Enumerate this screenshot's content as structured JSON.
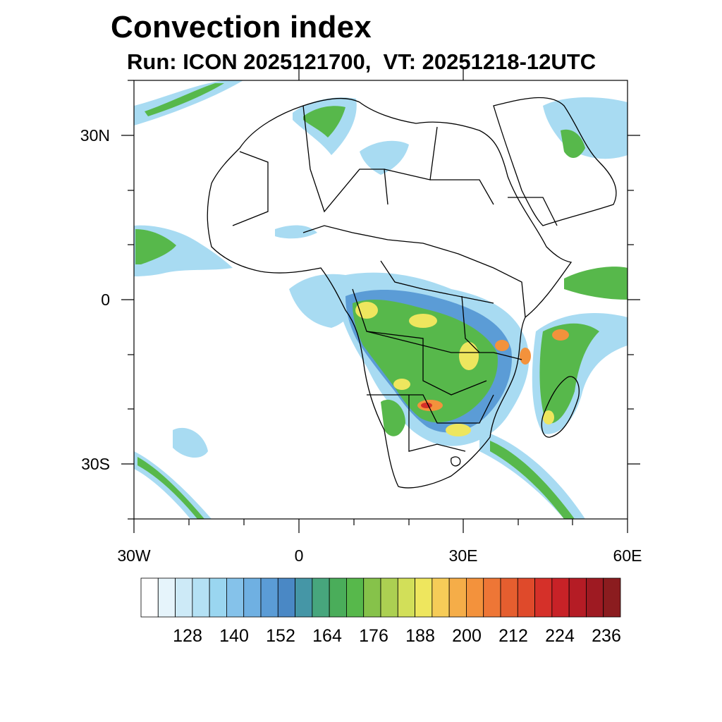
{
  "header": {
    "title": "Convection index",
    "subtitle": "Run: ICON 2025121700,  VT: 20251218-12UTC"
  },
  "axes": {
    "lat_labels": [
      "30N",
      "0",
      "30S"
    ],
    "lon_labels": [
      "30W",
      "0",
      "30E",
      "60E"
    ]
  },
  "colorbar": {
    "colors": [
      "#ffffff",
      "#e6f4fb",
      "#cdeaf7",
      "#b4e1f4",
      "#9ad6f0",
      "#85c2ea",
      "#6fb0e2",
      "#5b9cd6",
      "#4a88c5",
      "#4596a6",
      "#47a67d",
      "#4aad5a",
      "#57b84b",
      "#86c24a",
      "#acd052",
      "#d2df59",
      "#eee65e",
      "#f6cc58",
      "#f5ad48",
      "#f3923c",
      "#ee7636",
      "#e55e2f",
      "#df4a2b",
      "#d53029",
      "#c82227",
      "#b51c25",
      "#9e1a22",
      "#8b1c1f"
    ],
    "tick_labels": [
      "128",
      "140",
      "152",
      "164",
      "176",
      "188",
      "200",
      "212",
      "224",
      "236"
    ]
  },
  "map_colors": {
    "light_blue": "#a8dbf2",
    "mid_blue": "#5b9cd6",
    "green": "#57b84b",
    "yellow": "#eee65e",
    "orange": "#f3923c",
    "red": "#d53029"
  }
}
